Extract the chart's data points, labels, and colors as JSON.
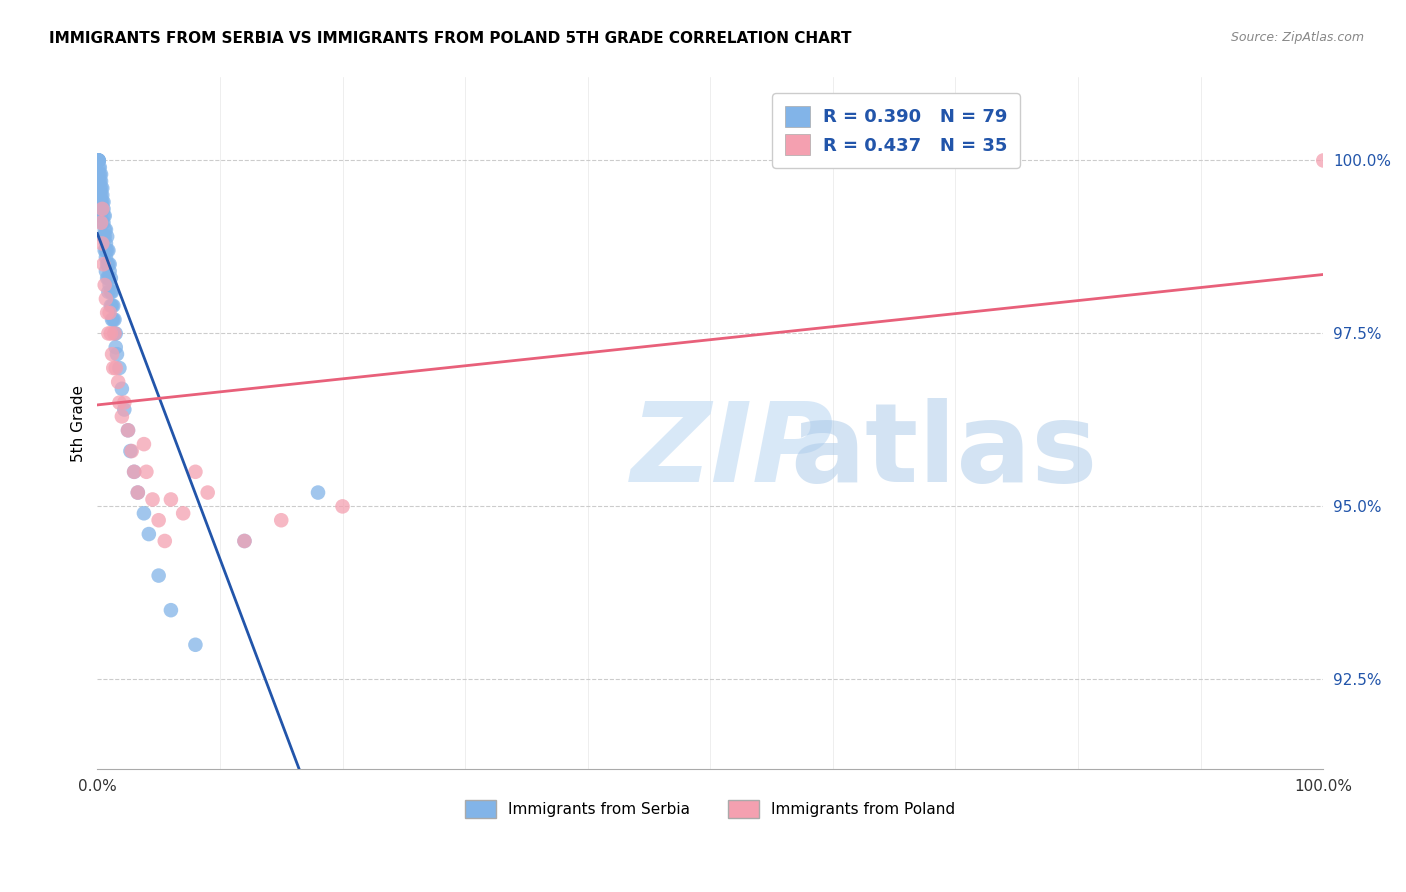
{
  "title": "IMMIGRANTS FROM SERBIA VS IMMIGRANTS FROM POLAND 5TH GRADE CORRELATION CHART",
  "source": "Source: ZipAtlas.com",
  "ylabel": "5th Grade",
  "y_ticks": [
    92.5,
    95.0,
    97.5,
    100.0
  ],
  "y_tick_labels": [
    "92.5%",
    "95.0%",
    "97.5%",
    "100.0%"
  ],
  "x_range": [
    0.0,
    1.0
  ],
  "y_range": [
    91.2,
    101.2
  ],
  "serbia_R": 0.39,
  "serbia_N": 79,
  "poland_R": 0.437,
  "poland_N": 35,
  "serbia_color": "#82B4E8",
  "poland_color": "#F4A0B0",
  "serbia_line_color": "#2255AA",
  "poland_line_color": "#E8607A",
  "legend_text_color": "#2255AA",
  "serbia_x": [
    0.0005,
    0.001,
    0.001,
    0.001,
    0.001,
    0.001,
    0.001,
    0.001,
    0.001,
    0.002,
    0.002,
    0.002,
    0.002,
    0.002,
    0.002,
    0.003,
    0.003,
    0.003,
    0.003,
    0.003,
    0.003,
    0.003,
    0.004,
    0.004,
    0.004,
    0.004,
    0.004,
    0.005,
    0.005,
    0.005,
    0.005,
    0.005,
    0.006,
    0.006,
    0.006,
    0.006,
    0.007,
    0.007,
    0.007,
    0.007,
    0.007,
    0.008,
    0.008,
    0.008,
    0.008,
    0.009,
    0.009,
    0.009,
    0.009,
    0.01,
    0.01,
    0.01,
    0.011,
    0.011,
    0.011,
    0.012,
    0.012,
    0.012,
    0.013,
    0.013,
    0.014,
    0.014,
    0.015,
    0.015,
    0.016,
    0.018,
    0.02,
    0.022,
    0.025,
    0.027,
    0.03,
    0.033,
    0.038,
    0.042,
    0.05,
    0.06,
    0.08,
    0.12,
    0.18
  ],
  "serbia_y": [
    100.0,
    100.0,
    100.0,
    100.0,
    100.0,
    100.0,
    99.9,
    99.8,
    99.7,
    99.9,
    99.8,
    99.7,
    99.6,
    99.5,
    99.4,
    99.8,
    99.7,
    99.6,
    99.5,
    99.4,
    99.3,
    99.2,
    99.6,
    99.5,
    99.4,
    99.3,
    99.1,
    99.4,
    99.3,
    99.2,
    99.1,
    98.9,
    99.2,
    99.0,
    98.9,
    98.7,
    99.0,
    98.8,
    98.7,
    98.6,
    98.4,
    98.9,
    98.7,
    98.5,
    98.3,
    98.7,
    98.5,
    98.3,
    98.1,
    98.5,
    98.4,
    98.2,
    98.3,
    98.1,
    97.9,
    98.1,
    97.9,
    97.7,
    97.9,
    97.7,
    97.7,
    97.5,
    97.5,
    97.3,
    97.2,
    97.0,
    96.7,
    96.4,
    96.1,
    95.8,
    95.5,
    95.2,
    94.9,
    94.6,
    94.0,
    93.5,
    93.0,
    94.5,
    95.2
  ],
  "poland_x": [
    0.003,
    0.004,
    0.004,
    0.005,
    0.006,
    0.007,
    0.008,
    0.009,
    0.01,
    0.011,
    0.012,
    0.013,
    0.014,
    0.015,
    0.017,
    0.018,
    0.02,
    0.022,
    0.025,
    0.028,
    0.03,
    0.033,
    0.038,
    0.04,
    0.045,
    0.05,
    0.055,
    0.06,
    0.07,
    0.08,
    0.09,
    0.12,
    0.15,
    0.2,
    1.0
  ],
  "poland_y": [
    99.1,
    98.8,
    99.3,
    98.5,
    98.2,
    98.0,
    97.8,
    97.5,
    97.8,
    97.5,
    97.2,
    97.0,
    97.5,
    97.0,
    96.8,
    96.5,
    96.3,
    96.5,
    96.1,
    95.8,
    95.5,
    95.2,
    95.9,
    95.5,
    95.1,
    94.8,
    94.5,
    95.1,
    94.9,
    95.5,
    95.2,
    94.5,
    94.8,
    95.0,
    100.0
  ]
}
